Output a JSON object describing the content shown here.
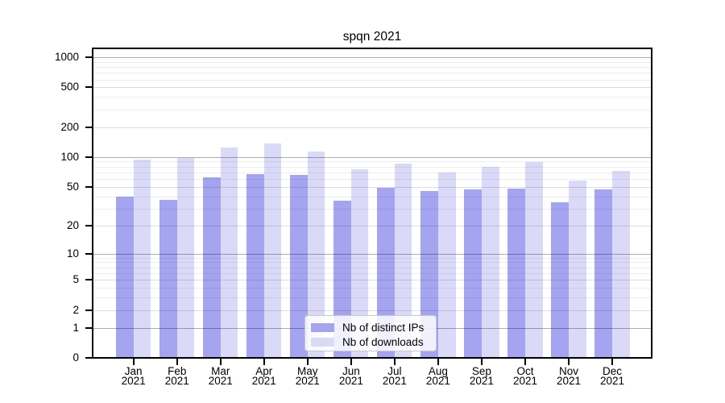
{
  "chart_data": {
    "type": "bar",
    "title": "spqn 2021",
    "categories": [
      "Jan",
      "Feb",
      "Mar",
      "Apr",
      "May",
      "Jun",
      "Jul",
      "Aug",
      "Sep",
      "Oct",
      "Nov",
      "Dec"
    ],
    "year_label": "2021",
    "series": [
      {
        "name": "Nb of distinct IPs",
        "color": "#a4a4f0",
        "values": [
          40,
          37,
          62,
          67,
          66,
          36,
          49,
          45,
          47,
          48,
          35,
          47
        ]
      },
      {
        "name": "Nb of downloads",
        "color": "#dadaf8",
        "values": [
          94,
          98,
          124,
          136,
          113,
          75,
          86,
          70,
          80,
          89,
          58,
          72
        ]
      }
    ],
    "xlabel": "",
    "ylabel": "",
    "y_ticks": [
      0,
      1,
      2,
      5,
      10,
      20,
      50,
      100,
      200,
      500,
      1000
    ],
    "ylim": [
      0,
      1240
    ],
    "yscale": "log10(1+v)",
    "grid": "horizontal",
    "grid_major_color": "#aeaeae",
    "grid_minor_color": "#ebebeb",
    "axis_color": "#000000",
    "background": "#ffffff",
    "legend_position": "lower center"
  }
}
